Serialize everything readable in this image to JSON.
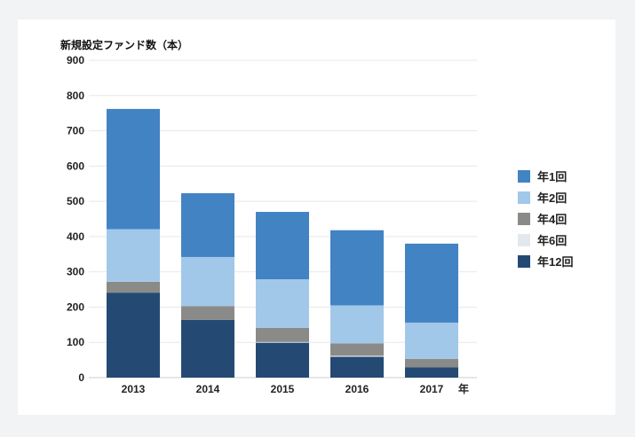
{
  "chart_data": {
    "type": "bar",
    "stacked": true,
    "title": "新規設定ファンド数（本）",
    "xlabel": "年",
    "ylabel": "新規設定ファンド数（本）",
    "ylim": [
      0,
      900
    ],
    "yticks": [
      0,
      100,
      200,
      300,
      400,
      500,
      600,
      700,
      800,
      900
    ],
    "categories": [
      "2013",
      "2014",
      "2015",
      "2016",
      "2017"
    ],
    "series": [
      {
        "name": "年12回",
        "color": "#244a74",
        "values": [
          241,
          164,
          99,
          59,
          29
        ]
      },
      {
        "name": "年6回",
        "color": "#e3e8ec",
        "values": [
          0,
          0,
          2,
          3,
          0
        ]
      },
      {
        "name": "年4回",
        "color": "#8a8b88",
        "values": [
          31,
          39,
          40,
          35,
          24
        ]
      },
      {
        "name": "年2回",
        "color": "#a1c8e9",
        "values": [
          149,
          139,
          138,
          108,
          103
        ]
      },
      {
        "name": "年1回",
        "color": "#4283c4",
        "values": [
          341,
          181,
          191,
          213,
          224
        ]
      }
    ],
    "legend_order": [
      "年1回",
      "年2回",
      "年4回",
      "年6回",
      "年12回"
    ],
    "legend_position": "right",
    "grid": true
  }
}
